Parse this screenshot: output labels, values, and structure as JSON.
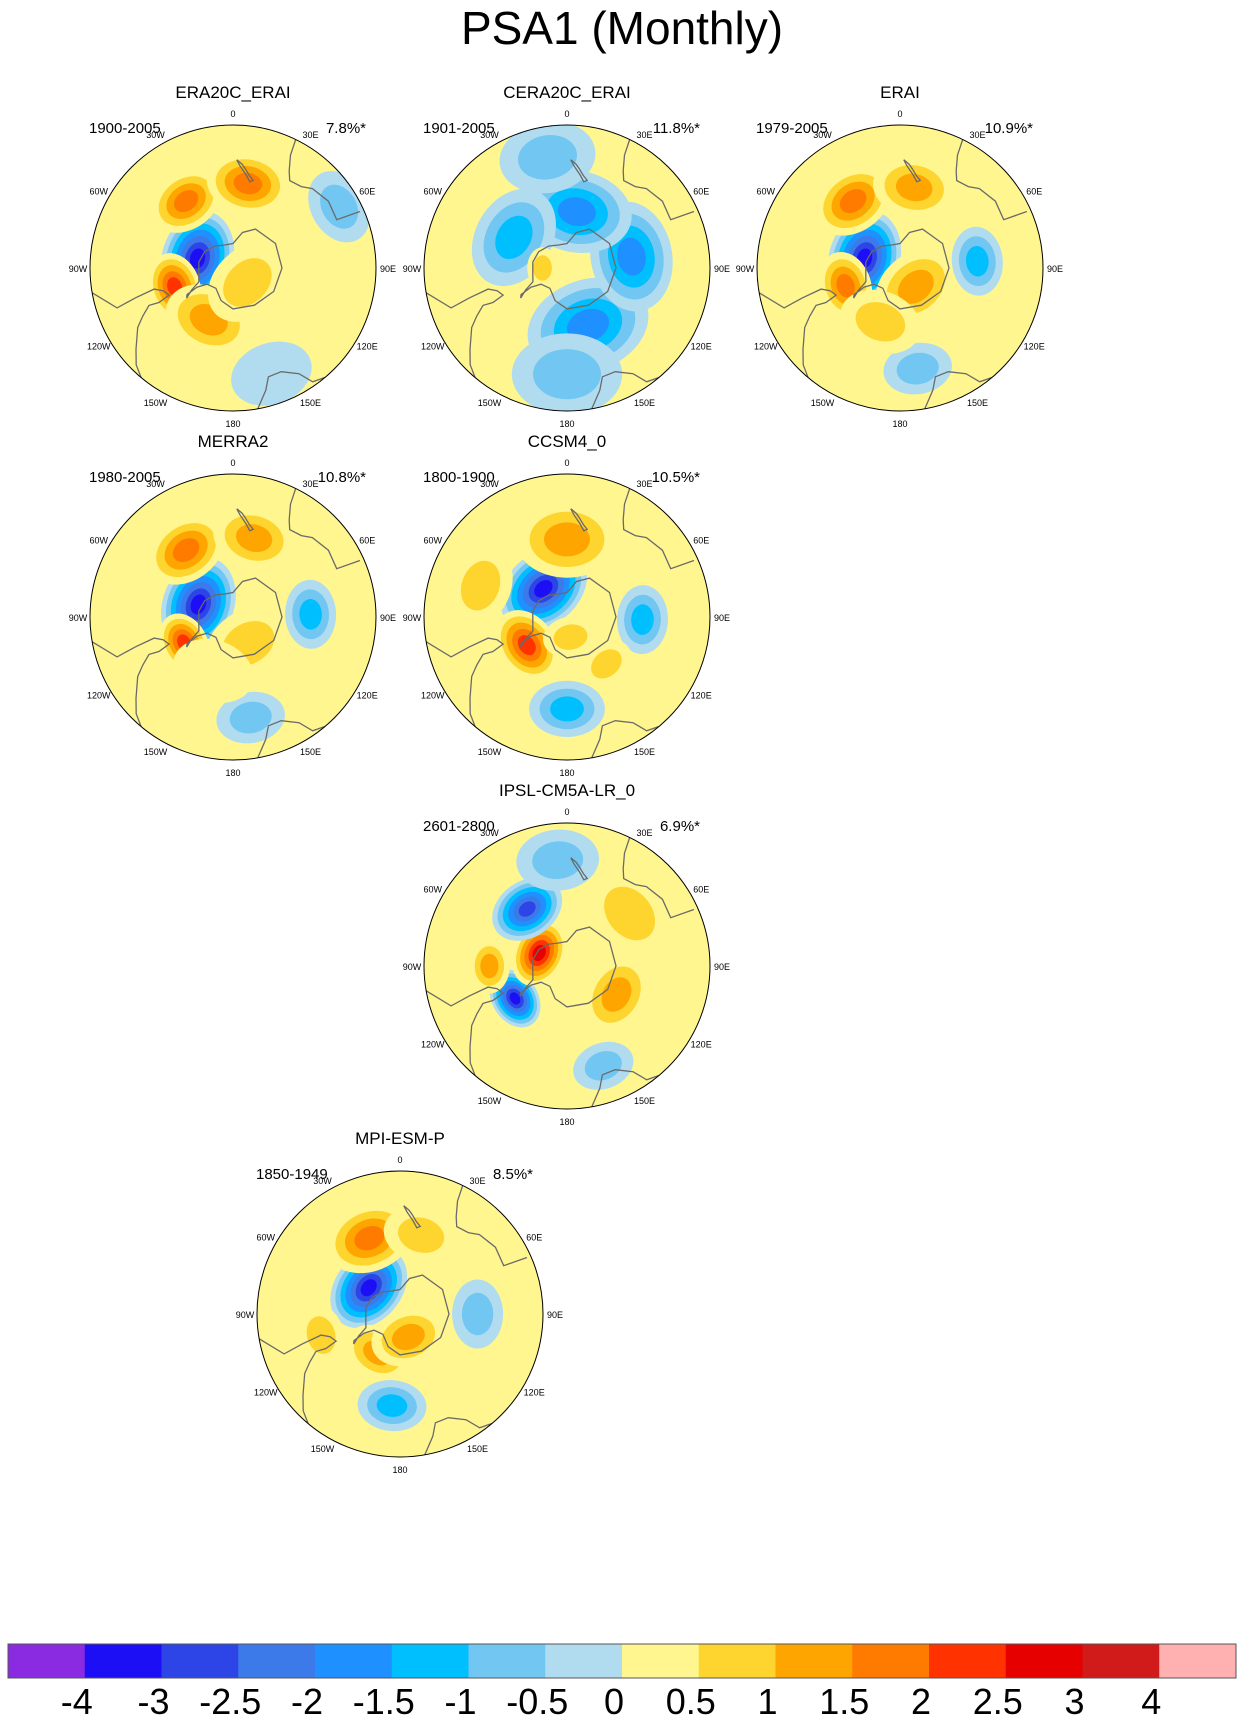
{
  "chart_data": {
    "type": "polar-contour-map-panels",
    "title": "PSA1 (Monthly)",
    "longitude_labels": [
      "0",
      "30E",
      "60E",
      "90E",
      "120E",
      "150E",
      "180",
      "150W",
      "120W",
      "90W",
      "60W",
      "30W"
    ],
    "colorbar": {
      "tick_labels": [
        "-4",
        "-3",
        "-2.5",
        "-2",
        "-1.5",
        "-1",
        "-0.5",
        "0",
        "0.5",
        "1",
        "1.5",
        "2",
        "2.5",
        "3",
        "4"
      ],
      "colors": [
        "#8A2BE2",
        "#1C0EF5",
        "#2D45E6",
        "#3C7AE9",
        "#1E90FF",
        "#00BFFF",
        "#71C7F2",
        "#B1DCF0",
        "#FFF68F",
        "#FED42E",
        "#FFA500",
        "#FF7B00",
        "#FF3200",
        "#E60000",
        "#D11A1A",
        "#FFB0B0"
      ]
    },
    "panels": [
      {
        "title": "ERA20C_ERAI",
        "years": "1900-2005",
        "variance": "7.8%*",
        "features": [
          {
            "lon": -105,
            "lat": -72,
            "value": -4.0,
            "size": 14
          },
          {
            "lon": -72,
            "lat": -60,
            "value": 2.3,
            "size": 10
          },
          {
            "lon": -145,
            "lat": -50,
            "value": 1.9,
            "size": 11
          },
          {
            "lon": 170,
            "lat": -48,
            "value": 1.6,
            "size": 12
          },
          {
            "lon": -25,
            "lat": -62,
            "value": 1.2,
            "size": 13
          },
          {
            "lon": 45,
            "lat": -80,
            "value": 0.9,
            "size": 13
          },
          {
            "lon": 120,
            "lat": -30,
            "value": -0.6,
            "size": 11
          },
          {
            "lon": 20,
            "lat": -35,
            "value": -0.4,
            "size": 12
          }
        ]
      },
      {
        "title": "CERA20C_ERAI",
        "years": "1901-2005",
        "variance": "11.8%*",
        "features": [
          {
            "lon": 20,
            "lat": -60,
            "value": -1.8,
            "size": 18
          },
          {
            "lon": 100,
            "lat": -58,
            "value": -2.0,
            "size": 16
          },
          {
            "lon": 170,
            "lat": -62,
            "value": -2.0,
            "size": 16
          },
          {
            "lon": -120,
            "lat": -60,
            "value": -1.5,
            "size": 15
          },
          {
            "lon": -90,
            "lat": -78,
            "value": 0.8,
            "size": 6
          },
          {
            "lon": 0,
            "lat": -38,
            "value": -0.9,
            "size": 16
          },
          {
            "lon": 60,
            "lat": -30,
            "value": 0.3,
            "size": 6
          },
          {
            "lon": -170,
            "lat": -35,
            "value": -0.6,
            "size": 14
          }
        ]
      },
      {
        "title": "ERAI",
        "years": "1979-2005",
        "variance": "10.9%*",
        "features": [
          {
            "lon": -105,
            "lat": -72,
            "value": -4.0,
            "size": 14
          },
          {
            "lon": -72,
            "lat": -62,
            "value": 1.6,
            "size": 10
          },
          {
            "lon": -145,
            "lat": -50,
            "value": 1.7,
            "size": 12
          },
          {
            "lon": 170,
            "lat": -50,
            "value": 1.3,
            "size": 12
          },
          {
            "lon": 40,
            "lat": -78,
            "value": 1.1,
            "size": 13
          },
          {
            "lon": 95,
            "lat": -52,
            "value": -1.3,
            "size": 10
          },
          {
            "lon": 10,
            "lat": -40,
            "value": -0.9,
            "size": 10
          },
          {
            "lon": -20,
            "lat": -62,
            "value": 0.6,
            "size": 12
          }
        ]
      },
      {
        "title": "MERRA2",
        "years": "1980-2005",
        "variance": "10.8%*",
        "features": [
          {
            "lon": -110,
            "lat": -72,
            "value": -4.0,
            "size": 14
          },
          {
            "lon": -62,
            "lat": -63,
            "value": 2.2,
            "size": 9
          },
          {
            "lon": -145,
            "lat": -50,
            "value": 1.8,
            "size": 12
          },
          {
            "lon": 165,
            "lat": -50,
            "value": 1.4,
            "size": 12
          },
          {
            "lon": 30,
            "lat": -75,
            "value": 1.0,
            "size": 13
          },
          {
            "lon": 92,
            "lat": -52,
            "value": -1.4,
            "size": 10
          },
          {
            "lon": 10,
            "lat": -40,
            "value": -0.9,
            "size": 10
          },
          {
            "lon": -20,
            "lat": -62,
            "value": 0.5,
            "size": 12
          }
        ]
      },
      {
        "title": "CCSM4_0",
        "years": "1800-1900",
        "variance": "10.5%*",
        "features": [
          {
            "lon": -140,
            "lat": -72,
            "value": -4.0,
            "size": 14
          },
          {
            "lon": -55,
            "lat": -66,
            "value": 2.4,
            "size": 11
          },
          {
            "lon": 180,
            "lat": -52,
            "value": 1.5,
            "size": 15
          },
          {
            "lon": -110,
            "lat": -45,
            "value": 0.9,
            "size": 12
          },
          {
            "lon": 0,
            "lat": -45,
            "value": -1.3,
            "size": 11
          },
          {
            "lon": 88,
            "lat": -53,
            "value": -1.3,
            "size": 10
          },
          {
            "lon": 40,
            "lat": -60,
            "value": 0.6,
            "size": 8
          },
          {
            "lon": 10,
            "lat": -80,
            "value": 0.7,
            "size": 8
          }
        ]
      },
      {
        "title": "IPSL-CM5A-LR_0",
        "years": "2601-2800",
        "variance": "6.9%*",
        "features": [
          {
            "lon": -58,
            "lat": -60,
            "value": -3.2,
            "size": 9
          },
          {
            "lon": -115,
            "lat": -75,
            "value": 2.8,
            "size": 10
          },
          {
            "lon": -145,
            "lat": -56,
            "value": -3.0,
            "size": 11
          },
          {
            "lon": 60,
            "lat": -62,
            "value": 1.3,
            "size": 12
          },
          {
            "lon": 130,
            "lat": -50,
            "value": 1.0,
            "size": 14
          },
          {
            "lon": -90,
            "lat": -52,
            "value": 1.2,
            "size": 8
          },
          {
            "lon": 20,
            "lat": -38,
            "value": -0.7,
            "size": 9
          },
          {
            "lon": -175,
            "lat": -38,
            "value": -0.6,
            "size": 12
          }
        ]
      },
      {
        "title": "MPI-ESM-P",
        "years": "1850-1949",
        "variance": "8.5%*",
        "features": [
          {
            "lon": -130,
            "lat": -70,
            "value": -4.0,
            "size": 13
          },
          {
            "lon": -158,
            "lat": -50,
            "value": 1.6,
            "size": 13
          },
          {
            "lon": -30,
            "lat": -68,
            "value": 1.1,
            "size": 10
          },
          {
            "lon": 20,
            "lat": -78,
            "value": 1.1,
            "size": 11
          },
          {
            "lon": -5,
            "lat": -45,
            "value": -1.5,
            "size": 10
          },
          {
            "lon": 90,
            "lat": -52,
            "value": -0.9,
            "size": 10
          },
          {
            "lon": 165,
            "lat": -50,
            "value": 0.8,
            "size": 11
          },
          {
            "lon": -75,
            "lat": -50,
            "value": 0.6,
            "size": 9
          }
        ]
      }
    ]
  }
}
